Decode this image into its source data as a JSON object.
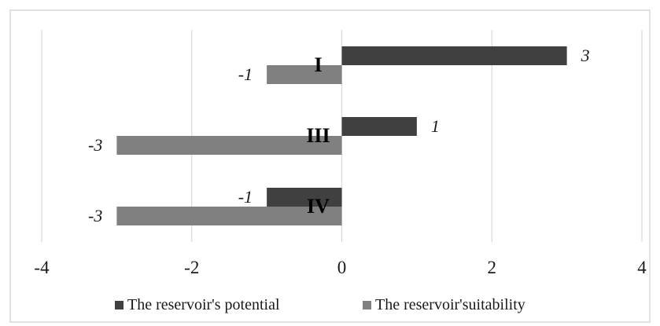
{
  "chart_data": {
    "type": "bar",
    "orientation": "horizontal",
    "categories": [
      "I",
      "III",
      "IV"
    ],
    "series": [
      {
        "name": "The reservoir's potential",
        "values": [
          3,
          1,
          -1
        ],
        "color": "#404040"
      },
      {
        "name": "The reservoir'suitability",
        "values": [
          -1,
          -3,
          -3
        ],
        "color": "#808080"
      }
    ],
    "data_labels": [
      [
        "3",
        "1",
        "-1"
      ],
      [
        "-1",
        "-3",
        "-3"
      ]
    ],
    "xlim": [
      -4,
      4
    ],
    "xticks": [
      -4,
      -2,
      0,
      2,
      4
    ],
    "xtick_labels": [
      "-4",
      "-2",
      "0",
      "2",
      "4"
    ],
    "grid": "vertical",
    "legend_position": "bottom"
  }
}
